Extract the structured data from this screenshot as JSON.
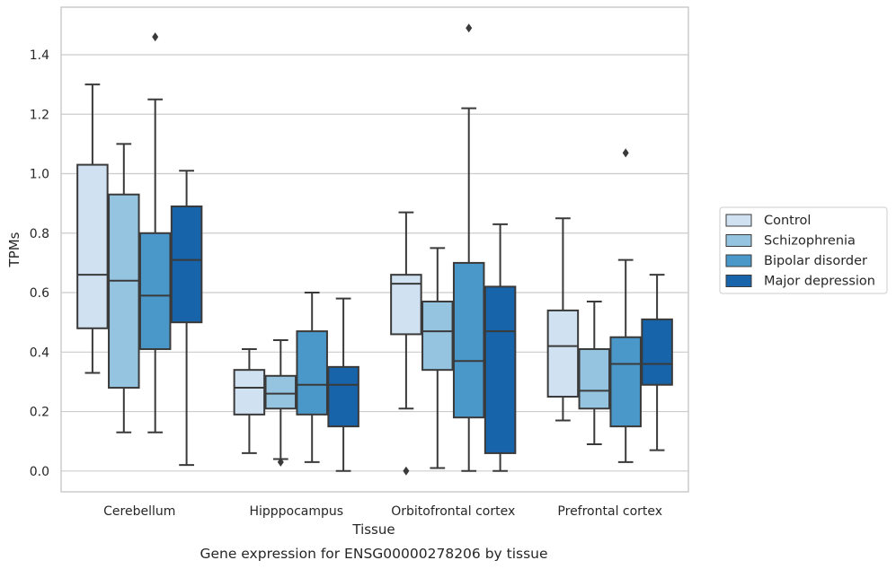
{
  "chart_data": {
    "type": "box",
    "title": "",
    "caption": "Gene expression for ENSG00000278206 by tissue",
    "xlabel": "Tissue",
    "ylabel": "TPMs",
    "ylim": [
      -0.07,
      1.56
    ],
    "yticks": [
      0.0,
      0.2,
      0.4,
      0.6,
      0.8,
      1.0,
      1.2,
      1.4
    ],
    "ytick_labels": [
      "0.0",
      "0.2",
      "0.4",
      "0.6",
      "0.8",
      "1.0",
      "1.2",
      "1.4"
    ],
    "grid": "horizontal",
    "legend_position": "right",
    "categories": [
      "Cerebellum",
      "Hipppocampus",
      "Orbitofrontal cortex",
      "Prefrontal cortex"
    ],
    "series": [
      {
        "name": "Control",
        "color": "#d0e1f2",
        "boxes": [
          {
            "min": 0.33,
            "q1": 0.48,
            "median": 0.66,
            "q3": 1.03,
            "max": 1.3,
            "outliers": []
          },
          {
            "min": 0.06,
            "q1": 0.19,
            "median": 0.28,
            "q3": 0.34,
            "max": 0.41,
            "outliers": []
          },
          {
            "min": 0.21,
            "q1": 0.46,
            "median": 0.63,
            "q3": 0.66,
            "max": 0.87,
            "outliers": [
              0.0
            ]
          },
          {
            "min": 0.17,
            "q1": 0.25,
            "median": 0.42,
            "q3": 0.54,
            "max": 0.85,
            "outliers": []
          }
        ]
      },
      {
        "name": "Schizophrenia",
        "color": "#94c4df",
        "boxes": [
          {
            "min": 0.13,
            "q1": 0.28,
            "median": 0.64,
            "q3": 0.93,
            "max": 1.1,
            "outliers": []
          },
          {
            "min": 0.04,
            "q1": 0.21,
            "median": 0.26,
            "q3": 0.32,
            "max": 0.44,
            "outliers": [
              0.03
            ]
          },
          {
            "min": 0.01,
            "q1": 0.34,
            "median": 0.47,
            "q3": 0.57,
            "max": 0.75,
            "outliers": []
          },
          {
            "min": 0.09,
            "q1": 0.21,
            "median": 0.27,
            "q3": 0.41,
            "max": 0.57,
            "outliers": []
          }
        ]
      },
      {
        "name": "Bipolar disorder",
        "color": "#4a98c9",
        "boxes": [
          {
            "min": 0.13,
            "q1": 0.41,
            "median": 0.59,
            "q3": 0.8,
            "max": 1.25,
            "outliers": [
              1.46
            ]
          },
          {
            "min": 0.03,
            "q1": 0.19,
            "median": 0.29,
            "q3": 0.47,
            "max": 0.6,
            "outliers": []
          },
          {
            "min": 0.0,
            "q1": 0.18,
            "median": 0.37,
            "q3": 0.7,
            "max": 1.22,
            "outliers": [
              1.49
            ]
          },
          {
            "min": 0.03,
            "q1": 0.15,
            "median": 0.36,
            "q3": 0.45,
            "max": 0.71,
            "outliers": [
              1.07
            ]
          }
        ]
      },
      {
        "name": "Major depression",
        "color": "#1764ab",
        "boxes": [
          {
            "min": 0.02,
            "q1": 0.5,
            "median": 0.71,
            "q3": 0.89,
            "max": 1.01,
            "outliers": []
          },
          {
            "min": 0.0,
            "q1": 0.15,
            "median": 0.29,
            "q3": 0.35,
            "max": 0.58,
            "outliers": []
          },
          {
            "min": 0.0,
            "q1": 0.06,
            "median": 0.47,
            "q3": 0.62,
            "max": 0.83,
            "outliers": []
          },
          {
            "min": 0.07,
            "q1": 0.29,
            "median": 0.36,
            "q3": 0.51,
            "max": 0.66,
            "outliers": []
          }
        ]
      }
    ]
  }
}
